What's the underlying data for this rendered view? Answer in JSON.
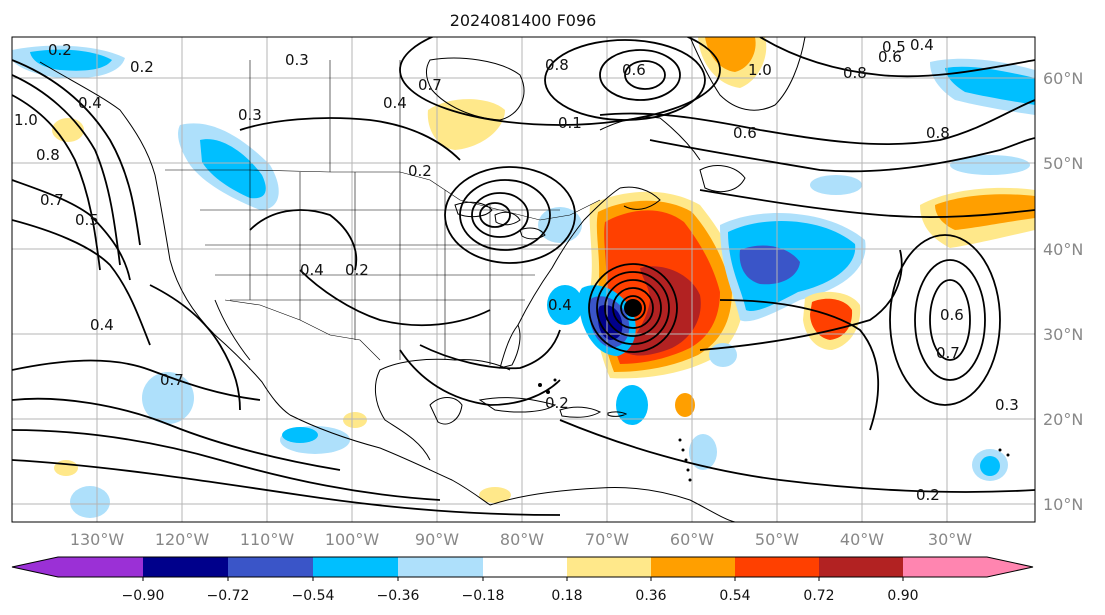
{
  "title": "2024081400 F096",
  "lon_labels": [
    "130°W",
    "120°W",
    "110°W",
    "100°W",
    "90°W",
    "80°W",
    "70°W",
    "60°W",
    "50°W",
    "40°W",
    "30°W"
  ],
  "lat_labels": [
    "60°N",
    "50°N",
    "40°N",
    "30°N",
    "20°N",
    "10°N"
  ],
  "colorbar": {
    "ticks": [
      "−0.90",
      "−0.72",
      "−0.54",
      "−0.36",
      "−0.18",
      "0.18",
      "0.36",
      "0.54",
      "0.72",
      "0.90"
    ],
    "colors": [
      "#9b30d6",
      "#00008b",
      "#3a55c8",
      "#00bfff",
      "#aee0fb",
      "#ffffff",
      "#ffe88a",
      "#ff9f00",
      "#ff4000",
      "#b22222",
      "#ff85b0"
    ]
  },
  "contour_labels": [
    "0.2",
    "0.3",
    "1.0",
    "0.8",
    "0.4",
    "0.7",
    "0.5",
    "0.2",
    "0.3",
    "0.6",
    "0.8",
    "0.5",
    "0.4",
    "0.7",
    "0.2",
    "0.4",
    "0.6",
    "1.0",
    "0.8",
    "0.6",
    "0.8",
    "0.7",
    "0.6",
    "0.3",
    "0.2",
    "0.4",
    "0.2",
    "0.7",
    "0.1",
    "0.2",
    "0.4",
    "0.4"
  ],
  "map_features": {
    "storm_marker": "tropical-cyclone-center"
  }
}
